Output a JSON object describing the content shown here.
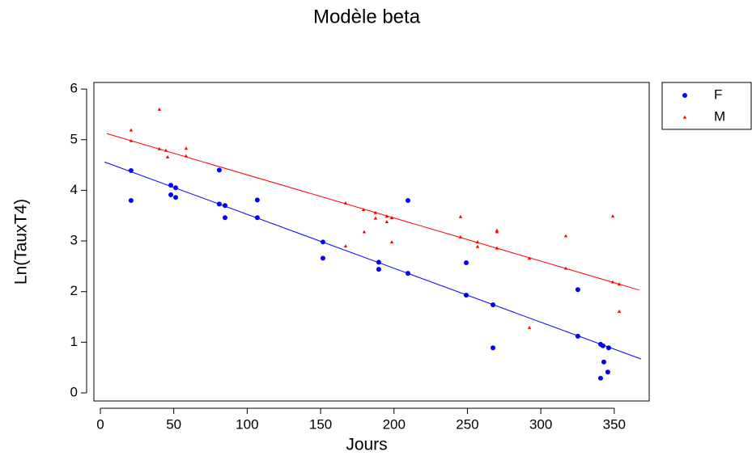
{
  "chart_data": {
    "type": "scatter",
    "title": "Modèle beta",
    "x_label": "Jours",
    "y_label": "Ln(TauxT4)",
    "xlim": [
      -4.4,
      373.8
    ],
    "ylim": [
      -0.16,
      6.13
    ],
    "xticks": [
      0,
      50,
      100,
      150,
      200,
      250,
      300,
      350
    ],
    "yticks": [
      0,
      1,
      2,
      3,
      4,
      5,
      6
    ],
    "legend": "outside-top-right",
    "series": [
      {
        "name": "F",
        "color": "#0000ff",
        "marker": "circle",
        "x": [
          20.9,
          20.9,
          48,
          51.3,
          48,
          51.3,
          81,
          81,
          84.9,
          84.9,
          106.9,
          106.9,
          151.6,
          151.6,
          189.6,
          189.6,
          209.5,
          209.5,
          249.2,
          249.2,
          267.4,
          267.4,
          325.2,
          325.2,
          340.7,
          342.3,
          346.2,
          342.9,
          345.6,
          340.7
        ],
        "values": [
          4.39,
          3.8,
          4.1,
          4.05,
          3.91,
          3.86,
          4.4,
          3.73,
          3.7,
          3.46,
          3.81,
          3.46,
          2.98,
          2.66,
          2.58,
          2.44,
          2.36,
          3.8,
          2.57,
          1.93,
          1.74,
          0.89,
          2.04,
          1.12,
          0.96,
          0.93,
          0.89,
          0.61,
          0.41,
          0.29
        ],
        "fit": {
          "x": [
            2.8,
            368.2
          ],
          "y": [
            4.56,
            0.67
          ]
        }
      },
      {
        "name": "M",
        "color": "#ff0000",
        "marker": "triangle",
        "x": [
          20.9,
          20.9,
          40.2,
          40.2,
          44.7,
          45.8,
          58.4,
          58.4,
          167,
          167,
          179.2,
          179.7,
          187.4,
          187.4,
          195.1,
          195.1,
          198.5,
          198.5,
          245.3,
          245.3,
          256.9,
          256.9,
          270.1,
          270.1,
          270.1,
          292.2,
          292.2,
          317,
          317,
          349,
          349,
          353.4,
          353.4
        ],
        "values": [
          5.19,
          4.98,
          5.6,
          4.82,
          4.79,
          4.66,
          4.83,
          4.68,
          3.75,
          2.9,
          3.62,
          3.18,
          3.56,
          3.45,
          3.49,
          3.38,
          3.46,
          2.98,
          3.48,
          3.08,
          2.98,
          2.89,
          3.21,
          3.18,
          2.86,
          2.66,
          1.29,
          3.1,
          2.46,
          3.49,
          2.19,
          2.15,
          1.61
        ],
        "fit": {
          "x": [
            4.4,
            367.1
          ],
          "y": [
            5.12,
            2.03
          ]
        }
      }
    ]
  }
}
